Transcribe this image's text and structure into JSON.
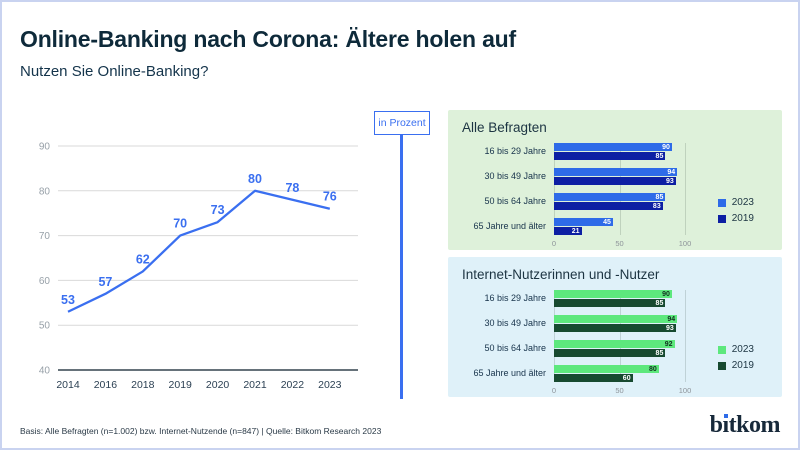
{
  "page": {
    "bg": "#ffffff",
    "border_color": "#c9d3f0"
  },
  "header": {
    "title": "Online-Banking nach Corona: Ältere holen auf",
    "subtitle": "Nutzen Sie Online-Banking?"
  },
  "unit_badge": {
    "label": "in Prozent",
    "color": "#3a6ff0"
  },
  "chart_data": [
    {
      "type": "line",
      "x": [
        "2014",
        "2016",
        "2018",
        "2019",
        "2020",
        "2021",
        "2022",
        "2023"
      ],
      "values": [
        53,
        57,
        62,
        70,
        73,
        80,
        78,
        76
      ],
      "ylim": [
        40,
        95
      ],
      "yticks": [
        40,
        50,
        60,
        70,
        80,
        90
      ],
      "unit": "Prozent",
      "line_color": "#3a6ff0",
      "grid": "horizontal",
      "data_labels": true
    },
    {
      "type": "bar",
      "orientation": "horizontal",
      "title": "Alle Befragten",
      "panel_bg": "#def1da",
      "categories": [
        "16 bis 29 Jahre",
        "30 bis 49 Jahre",
        "50 bis 64 Jahre",
        "65 Jahre und älter"
      ],
      "series": [
        {
          "name": "2023",
          "color": "#2e6be8",
          "label_color": "#ffffff",
          "values": [
            90,
            94,
            85,
            45
          ]
        },
        {
          "name": "2019",
          "color": "#0d1fa3",
          "label_color": "#ffffff",
          "values": [
            85,
            93,
            83,
            21
          ]
        }
      ],
      "xlim": [
        0,
        100
      ],
      "xticks": [
        0,
        50,
        100
      ],
      "legend_position": "right"
    },
    {
      "type": "bar",
      "orientation": "horizontal",
      "title": "Internet-Nutzerinnen und -Nutzer",
      "panel_bg": "#dff1f9",
      "categories": [
        "16 bis 29 Jahre",
        "30 bis 49 Jahre",
        "50 bis 64 Jahre",
        "65 Jahre und älter"
      ],
      "series": [
        {
          "name": "2023",
          "color": "#5de87d",
          "label_color": "#10301f",
          "values": [
            90,
            94,
            92,
            80
          ]
        },
        {
          "name": "2019",
          "color": "#174a30",
          "label_color": "#ffffff",
          "values": [
            85,
            93,
            85,
            60
          ]
        }
      ],
      "xlim": [
        0,
        100
      ],
      "xticks": [
        0,
        50,
        100
      ],
      "legend_position": "right"
    }
  ],
  "footer": {
    "source": "Basis: Alle Befragten (n=1.002) bzw. Internet-Nutzende (n=847) | Quelle: Bitkom Research 2023",
    "logo": "bitkom"
  }
}
